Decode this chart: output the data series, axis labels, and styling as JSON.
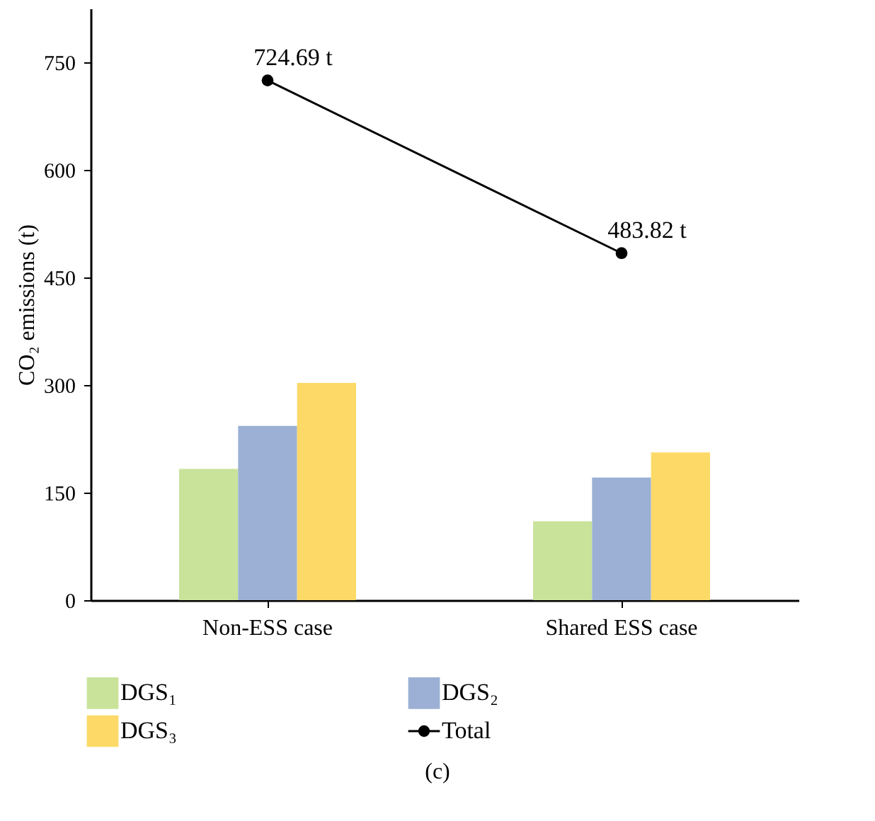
{
  "chart_data": {
    "type": "bar",
    "categories": [
      "Non-ESS case",
      "Shared ESS case"
    ],
    "ylabel": "CO₂ emissions (t)",
    "ylim": [
      0,
      825
    ],
    "yticks": [
      0,
      150,
      300,
      450,
      600,
      750
    ],
    "grid": false,
    "legend": "bottom",
    "annotations": [
      "(c)"
    ],
    "series": [
      {
        "name": "DGS₁",
        "color": "#c9e39b",
        "values": [
          183,
          110
        ]
      },
      {
        "name": "DGS₂",
        "color": "#9bb0d4",
        "values": [
          243,
          171
        ]
      },
      {
        "name": "DGS₃",
        "color": "#fdd967",
        "values": [
          303,
          206
        ]
      },
      {
        "name": "Total",
        "type": "line",
        "color": "#000000",
        "marker": "circle",
        "values": [
          724.69,
          483.82
        ],
        "value_labels": [
          "724.69 t",
          "483.82 t"
        ]
      }
    ]
  }
}
